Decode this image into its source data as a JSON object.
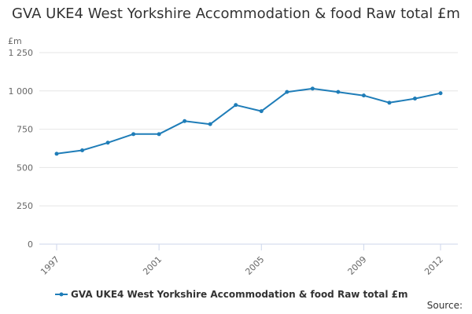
{
  "chart_data": {
    "type": "line",
    "title": "GVA UKE4 West Yorkshire Accommodation & food Raw total £m",
    "ylabel": "£m",
    "xlabel": "",
    "x": [
      1997,
      1998,
      1999,
      2000,
      2001,
      2002,
      2003,
      2004,
      2005,
      2006,
      2007,
      2008,
      2009,
      2010,
      2011,
      2012
    ],
    "series": [
      {
        "name": "GVA UKE4 West Yorkshire Accommodation & food Raw total £m",
        "color": "#1f7db8",
        "values": [
          590,
          612,
          662,
          718,
          718,
          803,
          783,
          908,
          868,
          993,
          1015,
          993,
          970,
          923,
          950,
          985
        ]
      }
    ],
    "x_tick_labels": [
      "1997",
      "2001",
      "2005",
      "2009",
      "2012"
    ],
    "y_tick_labels": [
      "0",
      "250",
      "500",
      "750",
      "1 000",
      "1 250"
    ],
    "y_ticks": [
      0,
      250,
      500,
      750,
      1000,
      1250
    ],
    "ylim": [
      0,
      1250
    ],
    "xlim": [
      1997,
      2012
    ],
    "grid": true,
    "legend": "bottom",
    "source_label": "Source:"
  }
}
